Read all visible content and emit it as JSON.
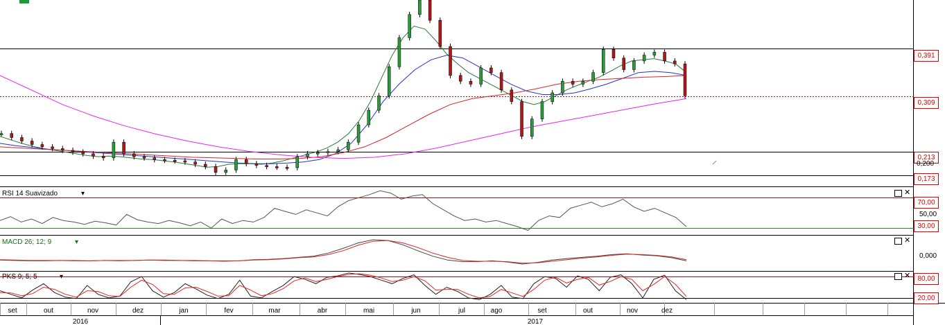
{
  "chart_data": {
    "type": "candlestick",
    "price_panel": {
      "levels": [
        "0,391",
        "0,309",
        "0,213",
        "0,173"
      ],
      "level_values": [
        0.391,
        0.309,
        0.213,
        0.173
      ],
      "axis_ticks": [
        "0,200"
      ],
      "axis_tick_values": [
        0.2
      ],
      "last_price": 0.309,
      "price_range": [
        0.155,
        0.475
      ],
      "series": [
        {
          "name": "",
          "color": "#000000",
          "kind": "close",
          "values": [
            0.245,
            0.238,
            0.232,
            0.226,
            0.222,
            0.219,
            0.216,
            0.213,
            0.21,
            0.206,
            0.203,
            0.23,
            0.21,
            0.205,
            0.203,
            0.2,
            0.199,
            0.198,
            0.196,
            0.192,
            0.188,
            0.178,
            0.182,
            0.2,
            0.193,
            0.19,
            0.188,
            0.187,
            0.186,
            0.205,
            0.21,
            0.212,
            0.214,
            0.217,
            0.23,
            0.26,
            0.285,
            0.31,
            0.36,
            0.41,
            0.45,
            0.475,
            0.44,
            0.395,
            0.345,
            0.335,
            0.33,
            0.358,
            0.35,
            0.32,
            0.3,
            0.24,
            0.27,
            0.3,
            0.315,
            0.335,
            0.33,
            0.335,
            0.35,
            0.39,
            0.375,
            0.355,
            0.37,
            0.38,
            0.385,
            0.37,
            0.365,
            0.31
          ]
        },
        {
          "name": "",
          "color": "#2a7a3a",
          "kind": "ma",
          "values": [
            0.24,
            0.234,
            0.228,
            0.223,
            0.219,
            0.216,
            0.213,
            0.21,
            0.207,
            0.205,
            0.206,
            0.205,
            0.203,
            0.201,
            0.2,
            0.198,
            0.196,
            0.193,
            0.19,
            0.187,
            0.188,
            0.192,
            0.193,
            0.193,
            0.192,
            0.194,
            0.198,
            0.203,
            0.208,
            0.213,
            0.22,
            0.23,
            0.245,
            0.268,
            0.3,
            0.34,
            0.38,
            0.41,
            0.43,
            0.425,
            0.405,
            0.382,
            0.365,
            0.35,
            0.34,
            0.33,
            0.32,
            0.31,
            0.3,
            0.295,
            0.3,
            0.31,
            0.32,
            0.328,
            0.335,
            0.342,
            0.352,
            0.362,
            0.37,
            0.372,
            0.374,
            0.37,
            0.365,
            0.35
          ]
        },
        {
          "name": "",
          "color": "#2233cc",
          "kind": "ma",
          "values": [
            0.228,
            0.224,
            0.221,
            0.218,
            0.216,
            0.214,
            0.212,
            0.21,
            0.208,
            0.206,
            0.204,
            0.202,
            0.2,
            0.198,
            0.196,
            0.194,
            0.193,
            0.193,
            0.194,
            0.196,
            0.2,
            0.21,
            0.228,
            0.26,
            0.3,
            0.33,
            0.355,
            0.372,
            0.38,
            0.375,
            0.36,
            0.345,
            0.33,
            0.318,
            0.312,
            0.312,
            0.315,
            0.322,
            0.33,
            0.34,
            0.35,
            0.352,
            0.35,
            0.345
          ]
        },
        {
          "name": "",
          "color": "#dd2222",
          "kind": "ma",
          "values": [
            0.222,
            0.22,
            0.218,
            0.216,
            0.214,
            0.212,
            0.21,
            0.208,
            0.206,
            0.204,
            0.203,
            0.202,
            0.201,
            0.201,
            0.202,
            0.205,
            0.212,
            0.222,
            0.238,
            0.258,
            0.278,
            0.295,
            0.305,
            0.31,
            0.315,
            0.322,
            0.33,
            0.335,
            0.338,
            0.34,
            0.342,
            0.343,
            0.345
          ]
        },
        {
          "name": "",
          "color": "#ee22ee",
          "kind": "ma",
          "values": [
            0.345,
            0.32,
            0.295,
            0.275,
            0.258,
            0.244,
            0.232,
            0.222,
            0.214,
            0.208,
            0.204,
            0.202,
            0.204,
            0.21,
            0.22,
            0.232,
            0.244,
            0.256,
            0.266,
            0.276,
            0.286,
            0.296,
            0.305
          ]
        }
      ]
    },
    "rsi_panel": {
      "title": "RSI 14 Suavizado",
      "levels": [
        "70,00",
        "30,00"
      ],
      "level_values": [
        70,
        30
      ],
      "axis_ticks": [
        "50,00"
      ],
      "range": [
        22,
        82
      ],
      "series": [
        {
          "name": "",
          "color": "#555555",
          "values": [
            40,
            45,
            38,
            42,
            36,
            44,
            40,
            38,
            35,
            39,
            37,
            34,
            48,
            41,
            38,
            36,
            40,
            37,
            33,
            38,
            30,
            42,
            36,
            40,
            38,
            44,
            56,
            52,
            48,
            54,
            50,
            46,
            58,
            66,
            70,
            74,
            79,
            76,
            68,
            72,
            74,
            62,
            54,
            46,
            40,
            42,
            38,
            40,
            36,
            32,
            27,
            40,
            46,
            44,
            56,
            60,
            64,
            58,
            62,
            68,
            58,
            52,
            56,
            50,
            44,
            32
          ]
        }
      ]
    },
    "macd_panel": {
      "title": "MACD 26; 12; 9",
      "axis_ticks": [
        "0,000"
      ],
      "range": [
        -0.03,
        0.055
      ],
      "series": [
        {
          "name": "",
          "color": "#444444",
          "values": [
            -0.004,
            -0.005,
            -0.006,
            -0.006,
            -0.005,
            -0.006,
            -0.006,
            -0.005,
            -0.006,
            -0.005,
            -0.004,
            -0.005,
            -0.005,
            -0.006,
            -0.006,
            -0.007,
            -0.006,
            -0.003,
            -0.002,
            0.0,
            0.003,
            0.006,
            0.014,
            0.026,
            0.04,
            0.048,
            0.046,
            0.035,
            0.02,
            0.006,
            -0.004,
            -0.008,
            -0.008,
            -0.006,
            -0.009,
            -0.014,
            -0.01,
            -0.004,
            0.0,
            0.003,
            0.006,
            0.01,
            0.012,
            0.009,
            0.007,
            0.002,
            -0.006
          ]
        },
        {
          "name": "",
          "color": "#dd2222",
          "values": [
            -0.003,
            -0.004,
            -0.005,
            -0.005,
            -0.005,
            -0.005,
            -0.006,
            -0.005,
            -0.005,
            -0.005,
            -0.004,
            -0.004,
            -0.005,
            -0.005,
            -0.006,
            -0.006,
            -0.006,
            -0.004,
            -0.003,
            -0.001,
            0.002,
            0.004,
            0.01,
            0.02,
            0.034,
            0.044,
            0.046,
            0.04,
            0.028,
            0.014,
            0.003,
            -0.005,
            -0.007,
            -0.007,
            -0.008,
            -0.012,
            -0.011,
            -0.007,
            -0.003,
            0.001,
            0.004,
            0.008,
            0.011,
            0.01,
            0.008,
            0.004,
            -0.003
          ]
        }
      ]
    },
    "pks_panel": {
      "title": "PKS 9; 5; 5",
      "levels": [
        "80,00",
        "20,00"
      ],
      "level_values": [
        80,
        20
      ],
      "range": [
        8,
        92
      ],
      "series": [
        {
          "name": "",
          "color": "#222222",
          "values": [
            40,
            30,
            20,
            42,
            60,
            35,
            22,
            18,
            55,
            30,
            20,
            25,
            65,
            80,
            40,
            22,
            35,
            60,
            45,
            28,
            18,
            30,
            70,
            25,
            20,
            38,
            55,
            80,
            72,
            60,
            78,
            82,
            90,
            86,
            80,
            70,
            60,
            75,
            85,
            55,
            30,
            50,
            38,
            20,
            15,
            30,
            55,
            22,
            18,
            60,
            80,
            75,
            50,
            82,
            72,
            40,
            78,
            85,
            60,
            20,
            72,
            84,
            40,
            15
          ]
        },
        {
          "name": "",
          "color": "#ee2222",
          "values": [
            35,
            34,
            26,
            32,
            50,
            44,
            30,
            22,
            40,
            38,
            26,
            24,
            50,
            70,
            58,
            32,
            30,
            48,
            50,
            38,
            25,
            26,
            55,
            42,
            26,
            32,
            46,
            68,
            76,
            66,
            72,
            80,
            86,
            88,
            84,
            76,
            66,
            70,
            80,
            68,
            42,
            44,
            44,
            30,
            20,
            24,
            44,
            34,
            24,
            44,
            70,
            78,
            62,
            72,
            78,
            56,
            66,
            80,
            72,
            40,
            58,
            80,
            58,
            24
          ]
        }
      ]
    },
    "x_axis": {
      "months": [
        "set",
        "out",
        "nov",
        "dez",
        "jan",
        "fev",
        "mar",
        "abr",
        "mai",
        "jun",
        "jul",
        "ago",
        "set",
        "out",
        "nov",
        "dez"
      ],
      "years": [
        "2016",
        "2017"
      ]
    }
  }
}
